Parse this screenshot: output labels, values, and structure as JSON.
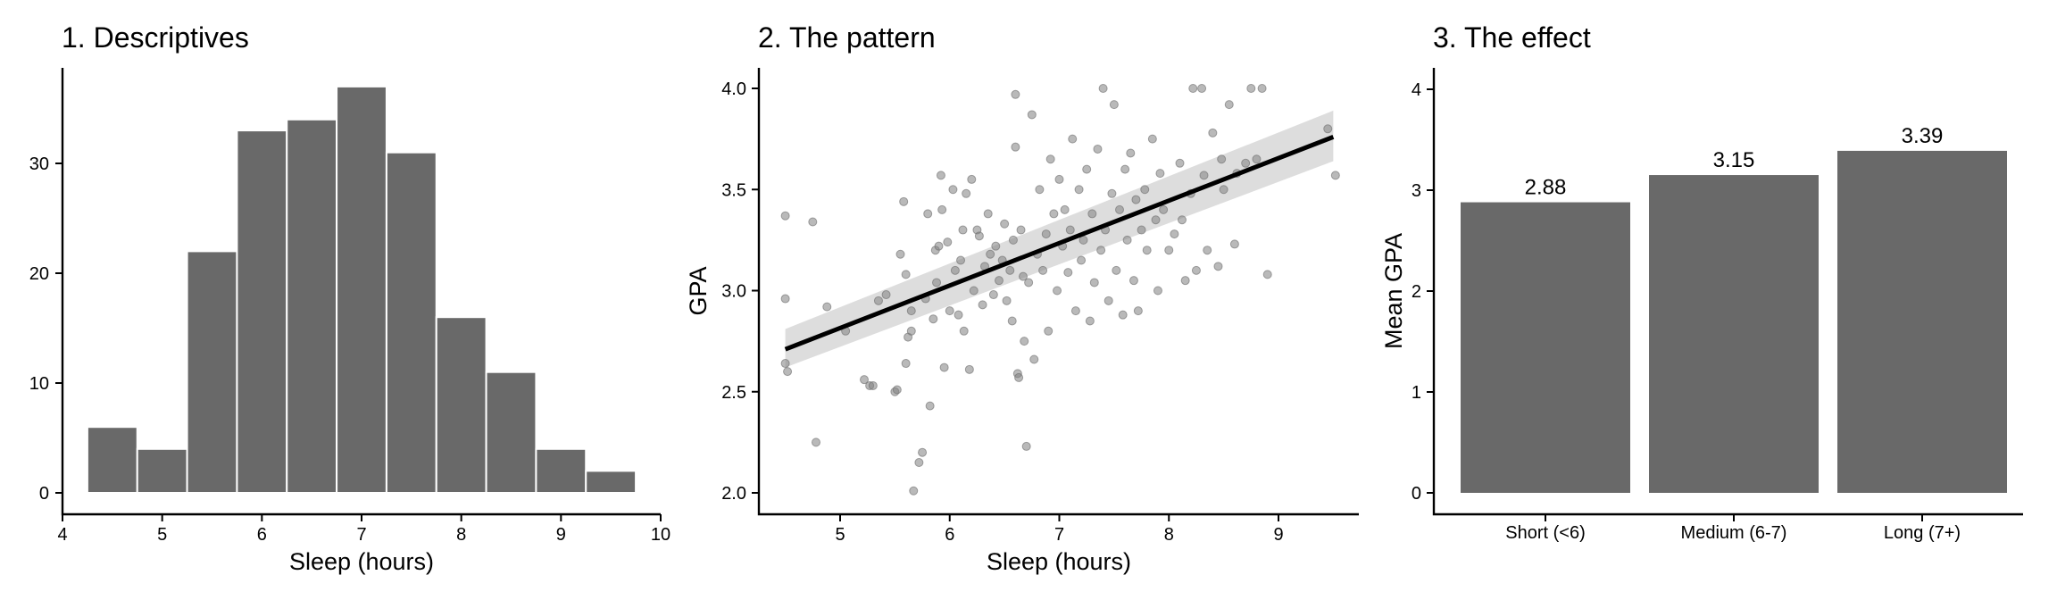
{
  "panels": {
    "hist": {
      "title": "1. Descriptives"
    },
    "scatter": {
      "title": "2. The pattern"
    },
    "bar": {
      "title": "3. The effect"
    }
  },
  "colors": {
    "bar": "#696969",
    "point": "#808080",
    "line": "#000000",
    "band": "#d9d9d9"
  },
  "chart_data": [
    {
      "type": "bar",
      "subtype": "histogram",
      "title": "1. Descriptives",
      "xlabel": "Sleep (hours)",
      "ylabel": "",
      "xlim": [
        4,
        10
      ],
      "ylim": [
        0,
        40
      ],
      "xticks": [
        4,
        5,
        6,
        7,
        8,
        9,
        10
      ],
      "yticks": [
        0,
        10,
        20,
        30
      ],
      "bin_width": 0.5,
      "bins": [
        {
          "x0": 4.25,
          "x1": 4.75,
          "count": 6
        },
        {
          "x0": 4.75,
          "x1": 5.25,
          "count": 4
        },
        {
          "x0": 5.25,
          "x1": 5.75,
          "count": 22
        },
        {
          "x0": 5.75,
          "x1": 6.25,
          "count": 33
        },
        {
          "x0": 6.25,
          "x1": 6.75,
          "count": 34
        },
        {
          "x0": 6.75,
          "x1": 7.25,
          "count": 37
        },
        {
          "x0": 7.25,
          "x1": 7.75,
          "count": 31
        },
        {
          "x0": 7.75,
          "x1": 8.25,
          "count": 16
        },
        {
          "x0": 8.25,
          "x1": 8.75,
          "count": 11
        },
        {
          "x0": 8.75,
          "x1": 9.25,
          "count": 4
        },
        {
          "x0": 9.25,
          "x1": 9.75,
          "count": 2
        }
      ],
      "grid": false
    },
    {
      "type": "scatter",
      "title": "2. The pattern",
      "xlabel": "Sleep (hours)",
      "ylabel": "GPA",
      "xlim": [
        4.3,
        9.7
      ],
      "ylim": [
        1.95,
        4.1
      ],
      "xticks": [
        5,
        6,
        7,
        8,
        9
      ],
      "yticks": [
        "2.0",
        "2.5",
        "3.0",
        "3.5",
        "4.0"
      ],
      "regression": {
        "x": [
          4.5,
          9.5
        ],
        "y": [
          2.71,
          3.76
        ],
        "ci_lower": [
          2.62,
          3.64
        ],
        "ci_upper": [
          2.81,
          3.89
        ]
      },
      "points": [
        [
          4.5,
          3.37
        ],
        [
          4.5,
          2.96
        ],
        [
          4.5,
          2.64
        ],
        [
          4.52,
          2.6
        ],
        [
          4.75,
          3.34
        ],
        [
          4.78,
          2.25
        ],
        [
          4.88,
          2.92
        ],
        [
          5.05,
          2.8
        ],
        [
          5.22,
          2.56
        ],
        [
          5.27,
          2.53
        ],
        [
          5.3,
          2.53
        ],
        [
          5.35,
          2.95
        ],
        [
          5.42,
          2.98
        ],
        [
          5.5,
          2.5
        ],
        [
          5.52,
          2.51
        ],
        [
          5.55,
          3.18
        ],
        [
          5.58,
          3.44
        ],
        [
          5.6,
          3.08
        ],
        [
          5.6,
          2.64
        ],
        [
          5.62,
          2.77
        ],
        [
          5.65,
          2.9
        ],
        [
          5.65,
          2.8
        ],
        [
          5.67,
          2.01
        ],
        [
          5.72,
          2.15
        ],
        [
          5.75,
          2.2
        ],
        [
          5.78,
          2.96
        ],
        [
          5.8,
          3.38
        ],
        [
          5.82,
          2.43
        ],
        [
          5.85,
          2.86
        ],
        [
          5.87,
          3.2
        ],
        [
          5.88,
          3.04
        ],
        [
          5.9,
          3.22
        ],
        [
          5.92,
          3.57
        ],
        [
          5.93,
          3.4
        ],
        [
          5.95,
          2.62
        ],
        [
          5.98,
          3.24
        ],
        [
          6.0,
          2.9
        ],
        [
          6.03,
          3.5
        ],
        [
          6.05,
          3.1
        ],
        [
          6.08,
          2.88
        ],
        [
          6.1,
          3.15
        ],
        [
          6.12,
          3.3
        ],
        [
          6.13,
          2.8
        ],
        [
          6.15,
          3.48
        ],
        [
          6.18,
          2.61
        ],
        [
          6.2,
          3.55
        ],
        [
          6.22,
          3.0
        ],
        [
          6.25,
          3.3
        ],
        [
          6.27,
          3.27
        ],
        [
          6.3,
          2.93
        ],
        [
          6.32,
          3.12
        ],
        [
          6.35,
          3.38
        ],
        [
          6.37,
          3.18
        ],
        [
          6.4,
          2.98
        ],
        [
          6.42,
          3.22
        ],
        [
          6.45,
          3.05
        ],
        [
          6.48,
          3.15
        ],
        [
          6.5,
          3.33
        ],
        [
          6.52,
          2.95
        ],
        [
          6.55,
          3.1
        ],
        [
          6.57,
          2.85
        ],
        [
          6.58,
          3.25
        ],
        [
          6.6,
          3.97
        ],
        [
          6.6,
          3.71
        ],
        [
          6.62,
          2.59
        ],
        [
          6.63,
          2.57
        ],
        [
          6.65,
          3.3
        ],
        [
          6.67,
          3.07
        ],
        [
          6.68,
          2.75
        ],
        [
          6.7,
          2.23
        ],
        [
          6.72,
          3.04
        ],
        [
          6.75,
          3.87
        ],
        [
          6.77,
          2.66
        ],
        [
          6.8,
          3.18
        ],
        [
          6.82,
          3.5
        ],
        [
          6.85,
          3.1
        ],
        [
          6.88,
          3.28
        ],
        [
          6.9,
          2.8
        ],
        [
          6.92,
          3.65
        ],
        [
          6.95,
          3.38
        ],
        [
          6.98,
          3.0
        ],
        [
          7.0,
          3.55
        ],
        [
          7.03,
          3.22
        ],
        [
          7.05,
          3.4
        ],
        [
          7.08,
          3.09
        ],
        [
          7.1,
          3.3
        ],
        [
          7.12,
          3.75
        ],
        [
          7.15,
          2.9
        ],
        [
          7.18,
          3.5
        ],
        [
          7.2,
          3.15
        ],
        [
          7.22,
          3.25
        ],
        [
          7.25,
          3.6
        ],
        [
          7.28,
          2.85
        ],
        [
          7.3,
          3.38
        ],
        [
          7.32,
          3.04
        ],
        [
          7.35,
          3.7
        ],
        [
          7.38,
          3.2
        ],
        [
          7.4,
          4.0
        ],
        [
          7.42,
          3.3
        ],
        [
          7.45,
          2.95
        ],
        [
          7.48,
          3.48
        ],
        [
          7.5,
          3.92
        ],
        [
          7.52,
          3.1
        ],
        [
          7.55,
          3.4
        ],
        [
          7.58,
          2.88
        ],
        [
          7.6,
          3.6
        ],
        [
          7.62,
          3.25
        ],
        [
          7.65,
          3.68
        ],
        [
          7.68,
          3.05
        ],
        [
          7.7,
          3.45
        ],
        [
          7.72,
          2.9
        ],
        [
          7.75,
          3.3
        ],
        [
          7.78,
          3.5
        ],
        [
          7.8,
          3.2
        ],
        [
          7.85,
          3.75
        ],
        [
          7.88,
          3.35
        ],
        [
          7.9,
          3.0
        ],
        [
          7.92,
          3.58
        ],
        [
          7.95,
          3.4
        ],
        [
          8.0,
          3.2
        ],
        [
          8.05,
          3.28
        ],
        [
          8.1,
          3.63
        ],
        [
          8.12,
          3.35
        ],
        [
          8.15,
          3.05
        ],
        [
          8.2,
          3.48
        ],
        [
          8.22,
          4.0
        ],
        [
          8.25,
          3.1
        ],
        [
          8.3,
          4.0
        ],
        [
          8.32,
          3.57
        ],
        [
          8.35,
          3.2
        ],
        [
          8.4,
          3.78
        ],
        [
          8.45,
          3.12
        ],
        [
          8.48,
          3.65
        ],
        [
          8.5,
          3.5
        ],
        [
          8.55,
          3.92
        ],
        [
          8.6,
          3.23
        ],
        [
          8.62,
          3.58
        ],
        [
          8.7,
          3.63
        ],
        [
          8.75,
          4.0
        ],
        [
          8.8,
          3.65
        ],
        [
          8.85,
          4.0
        ],
        [
          8.9,
          3.08
        ],
        [
          9.45,
          3.8
        ],
        [
          9.52,
          3.57
        ]
      ],
      "grid": false
    },
    {
      "type": "bar",
      "title": "3. The effect",
      "xlabel": "",
      "ylabel": "Mean GPA",
      "ylim": [
        0,
        4.2
      ],
      "yticks": [
        0,
        1,
        2,
        3,
        4
      ],
      "categories": [
        "Short (<6)",
        "Medium (6-7)",
        "Long (7+)"
      ],
      "values": [
        2.88,
        3.15,
        3.39
      ],
      "labels": [
        "2.88",
        "3.15",
        "3.39"
      ],
      "grid": false
    }
  ]
}
